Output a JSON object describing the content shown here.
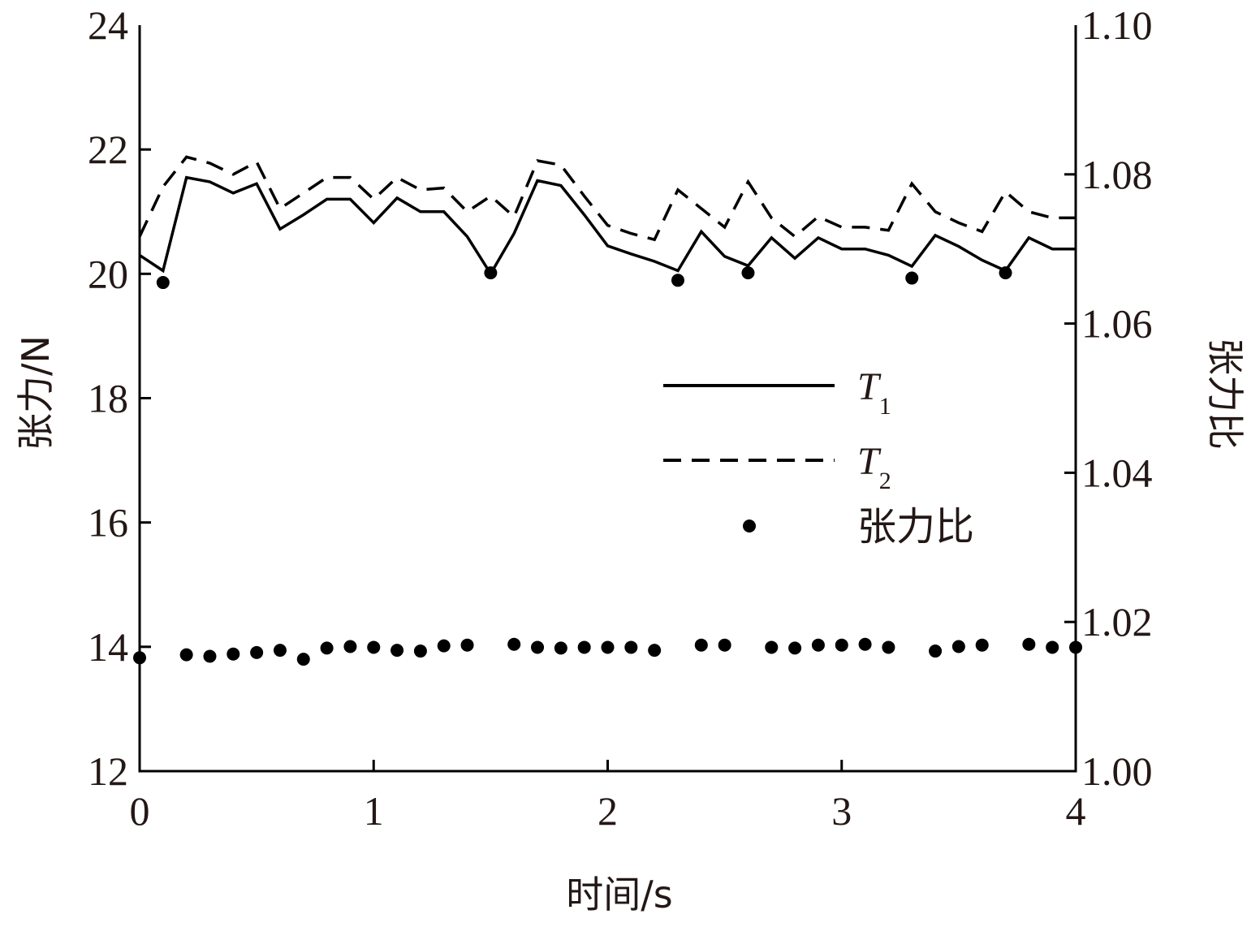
{
  "chart_data": {
    "type": "line",
    "xlabel": "时间/s",
    "ylabel_left": "张力/N",
    "ylabel_right": "张力比",
    "x_ticks": [
      "0",
      "1",
      "2",
      "3",
      "4"
    ],
    "y_left_ticks": [
      "12",
      "14",
      "16",
      "18",
      "20",
      "22",
      "24"
    ],
    "y_right_ticks": [
      "1.00",
      "1.02",
      "1.04",
      "1.06",
      "1.08",
      "1.10"
    ],
    "xlim": [
      0,
      4
    ],
    "ylim_left": [
      12,
      24
    ],
    "ylim_right": [
      1.0,
      1.1
    ],
    "legend": {
      "placement": "center-right",
      "entries": [
        {
          "main": "T",
          "sub": "1",
          "style": "solid"
        },
        {
          "main": "T",
          "sub": "2",
          "style": "dashed"
        },
        {
          "main": "张力比",
          "sub": "",
          "style": "dot"
        }
      ]
    },
    "series": [
      {
        "key": "T1",
        "axis": "left",
        "style": "solid",
        "x": [
          0,
          0.1,
          0.2,
          0.3,
          0.4,
          0.5,
          0.6,
          0.7,
          0.8,
          0.9,
          1.0,
          1.1,
          1.2,
          1.3,
          1.4,
          1.5,
          1.6,
          1.7,
          1.8,
          1.9,
          2.0,
          2.1,
          2.2,
          2.3,
          2.4,
          2.5,
          2.6,
          2.7,
          2.8,
          2.9,
          3.0,
          3.1,
          3.2,
          3.3,
          3.4,
          3.5,
          3.6,
          3.7,
          3.8,
          3.9,
          4.0
        ],
        "y": [
          20.3,
          20.05,
          21.55,
          21.48,
          21.3,
          21.45,
          20.72,
          20.95,
          21.2,
          21.2,
          20.82,
          21.22,
          21.0,
          21.0,
          20.6,
          20.0,
          20.65,
          21.5,
          21.42,
          20.95,
          20.45,
          20.32,
          20.2,
          20.05,
          20.68,
          20.28,
          20.13,
          20.58,
          20.25,
          20.58,
          20.4,
          20.4,
          20.3,
          20.12,
          20.62,
          20.44,
          20.22,
          20.05,
          20.58,
          20.4,
          20.4
        ]
      },
      {
        "key": "T2",
        "axis": "left",
        "style": "dashed",
        "x": [
          0,
          0.1,
          0.2,
          0.3,
          0.4,
          0.5,
          0.6,
          0.7,
          0.8,
          0.9,
          1.0,
          1.1,
          1.2,
          1.3,
          1.4,
          1.5,
          1.6,
          1.7,
          1.8,
          1.9,
          2.0,
          2.1,
          2.2,
          2.3,
          2.4,
          2.5,
          2.6,
          2.7,
          2.8,
          2.9,
          3.0,
          3.1,
          3.2,
          3.3,
          3.4,
          3.5,
          3.6,
          3.7,
          3.8,
          3.9,
          4.0
        ],
        "y": [
          20.6,
          21.4,
          21.88,
          21.78,
          21.6,
          21.8,
          21.05,
          21.3,
          21.55,
          21.55,
          21.2,
          21.55,
          21.35,
          21.38,
          21.0,
          21.25,
          20.92,
          21.82,
          21.75,
          21.25,
          20.78,
          20.65,
          20.55,
          21.35,
          21.05,
          20.75,
          21.48,
          20.9,
          20.6,
          20.92,
          20.75,
          20.75,
          20.7,
          21.45,
          21.0,
          20.82,
          20.68,
          21.32,
          21.0,
          20.9,
          20.9
        ]
      },
      {
        "key": "ratio",
        "axis": "right",
        "style": "dot",
        "x": [
          0,
          0.1,
          0.2,
          0.3,
          0.4,
          0.5,
          0.6,
          0.7,
          0.8,
          0.9,
          1.0,
          1.1,
          1.2,
          1.3,
          1.4,
          1.5,
          1.6,
          1.7,
          1.8,
          1.9,
          2.0,
          2.1,
          2.2,
          2.3,
          2.4,
          2.5,
          2.6,
          2.7,
          2.8,
          2.9,
          3.0,
          3.1,
          3.2,
          3.3,
          3.4,
          3.5,
          3.6,
          3.7,
          3.8,
          3.9,
          4.0
        ],
        "y": [
          1.0152,
          1.0655,
          1.0156,
          1.0154,
          1.0157,
          1.0159,
          1.0162,
          1.015,
          1.0165,
          1.0167,
          1.0166,
          1.0162,
          1.0161,
          1.0168,
          1.0169,
          1.0668,
          1.017,
          1.0166,
          1.0165,
          1.0166,
          1.0166,
          1.0166,
          1.0162,
          1.0658,
          1.0169,
          1.0169,
          1.0668,
          1.0166,
          1.0165,
          1.0169,
          1.0169,
          1.017,
          1.0166,
          1.0661,
          1.0161,
          1.0167,
          1.0169,
          1.0668,
          1.017,
          1.0166,
          1.0166
        ]
      }
    ]
  }
}
